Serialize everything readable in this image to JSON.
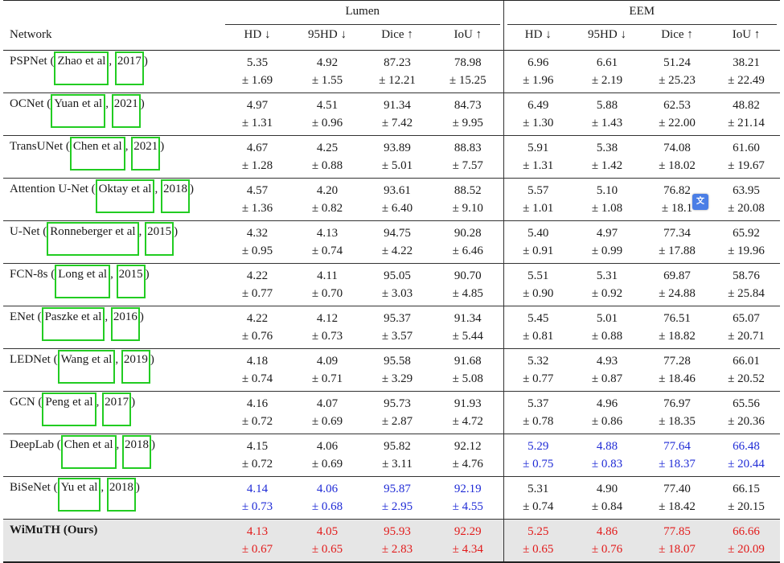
{
  "header": {
    "network": "Network",
    "groups": [
      "Lumen",
      "EEM"
    ],
    "metrics": [
      "HD ↓",
      "95HD ↓",
      "Dice ↑",
      "IoU ↑",
      "HD ↓",
      "95HD ↓",
      "Dice ↑",
      "IoU ↑"
    ]
  },
  "colors": {
    "blue": "#1f2bd6",
    "red": "#e21a1a",
    "cite_box": "#22cc22"
  },
  "rows": [
    {
      "name": "PSPNet",
      "author": "Zhao et al",
      "year": "2017",
      "vals": [
        "5.35",
        "4.92",
        "87.23",
        "78.98",
        "6.96",
        "6.61",
        "51.24",
        "38.21"
      ],
      "sds": [
        "± 1.69",
        "± 1.55",
        "± 12.21",
        "± 15.25",
        "± 1.96",
        "± 2.19",
        "± 25.23",
        "± 22.49"
      ]
    },
    {
      "name": "OCNet",
      "author": "Yuan et al",
      "year": "2021",
      "vals": [
        "4.97",
        "4.51",
        "91.34",
        "84.73",
        "6.49",
        "5.88",
        "62.53",
        "48.82"
      ],
      "sds": [
        "± 1.31",
        "± 0.96",
        "± 7.42",
        "± 9.95",
        "± 1.30",
        "± 1.43",
        "± 22.00",
        "± 21.14"
      ]
    },
    {
      "name": "TransUNet",
      "author": "Chen et al",
      "year": "2021",
      "vals": [
        "4.67",
        "4.25",
        "93.89",
        "88.83",
        "5.91",
        "5.38",
        "74.08",
        "61.60"
      ],
      "sds": [
        "± 1.28",
        "± 0.88",
        "± 5.01",
        "± 7.57",
        "± 1.31",
        "± 1.42",
        "± 18.02",
        "± 19.67"
      ]
    },
    {
      "name": "Attention U-Net",
      "author": "Oktay et al",
      "year": "2018",
      "vals": [
        "4.57",
        "4.20",
        "93.61",
        "88.52",
        "5.57",
        "5.10",
        "76.82",
        "63.95"
      ],
      "sds": [
        "± 1.36",
        "± 0.82",
        "± 6.40",
        "± 9.10",
        "± 1.01",
        "± 1.08",
        "± 18.1",
        "± 20.08"
      ]
    },
    {
      "name": "U-Net",
      "author": "Ronneberger et al",
      "year": "2015",
      "vals": [
        "4.32",
        "4.13",
        "94.75",
        "90.28",
        "5.40",
        "4.97",
        "77.34",
        "65.92"
      ],
      "sds": [
        "± 0.95",
        "± 0.74",
        "± 4.22",
        "± 6.46",
        "± 0.91",
        "± 0.99",
        "± 17.88",
        "± 19.96"
      ]
    },
    {
      "name": "FCN-8s",
      "author": "Long et al",
      "year": "2015",
      "vals": [
        "4.22",
        "4.11",
        "95.05",
        "90.70",
        "5.51",
        "5.31",
        "69.87",
        "58.76"
      ],
      "sds": [
        "± 0.77",
        "± 0.70",
        "± 3.03",
        "± 4.85",
        "± 0.90",
        "± 0.92",
        "± 24.88",
        "± 25.84"
      ]
    },
    {
      "name": "ENet",
      "author": "Paszke et al",
      "year": "2016",
      "vals": [
        "4.22",
        "4.12",
        "95.37",
        "91.34",
        "5.45",
        "5.01",
        "76.51",
        "65.07"
      ],
      "sds": [
        "± 0.76",
        "± 0.73",
        "± 3.57",
        "± 5.44",
        "± 0.81",
        "± 0.88",
        "± 18.82",
        "± 20.71"
      ]
    },
    {
      "name": "LEDNet",
      "author": "Wang et al",
      "year": "2019",
      "vals": [
        "4.18",
        "4.09",
        "95.58",
        "91.68",
        "5.32",
        "4.93",
        "77.28",
        "66.01"
      ],
      "sds": [
        "± 0.74",
        "± 0.71",
        "± 3.29",
        "± 5.08",
        "± 0.77",
        "± 0.87",
        "± 18.46",
        "± 20.52"
      ]
    },
    {
      "name": "GCN",
      "author": "Peng et al",
      "year": "2017",
      "vals": [
        "4.16",
        "4.07",
        "95.73",
        "91.93",
        "5.37",
        "4.96",
        "76.97",
        "65.56"
      ],
      "sds": [
        "± 0.72",
        "± 0.69",
        "± 2.87",
        "± 4.72",
        "± 0.78",
        "± 0.86",
        "± 18.35",
        "± 20.36"
      ]
    },
    {
      "name": "DeepLab",
      "author": "Chen et al",
      "year": "2018",
      "vals": [
        "4.15",
        "4.06",
        "95.82",
        "92.12",
        "5.29",
        "4.88",
        "77.64",
        "66.48"
      ],
      "sds": [
        "± 0.72",
        "± 0.69",
        "± 3.11",
        "± 4.76",
        "± 0.75",
        "± 0.83",
        "± 18.37",
        "± 20.44"
      ],
      "highlight": [
        "",
        "",
        "",
        "",
        "blue",
        "blue",
        "blue",
        "blue"
      ]
    },
    {
      "name": "BiSeNet",
      "author": "Yu et al",
      "year": "2018",
      "vals": [
        "4.14",
        "4.06",
        "95.87",
        "92.19",
        "5.31",
        "4.90",
        "77.40",
        "66.15"
      ],
      "sds": [
        "± 0.73",
        "± 0.68",
        "± 2.95",
        "± 4.55",
        "± 0.74",
        "± 0.84",
        "± 18.42",
        "± 20.15"
      ],
      "highlight": [
        "blue",
        "blue",
        "blue",
        "blue",
        "",
        "",
        "",
        ""
      ]
    }
  ],
  "ours": {
    "name": "WiMuTH (Ours)",
    "vals": [
      "4.13",
      "4.05",
      "95.93",
      "92.29",
      "5.25",
      "4.86",
      "77.85",
      "66.66"
    ],
    "sds": [
      "± 0.67",
      "± 0.65",
      "± 2.83",
      "± 4.34",
      "± 0.65",
      "± 0.76",
      "± 18.07",
      "± 20.09"
    ]
  },
  "overlay": {
    "icon": "translate-icon"
  }
}
